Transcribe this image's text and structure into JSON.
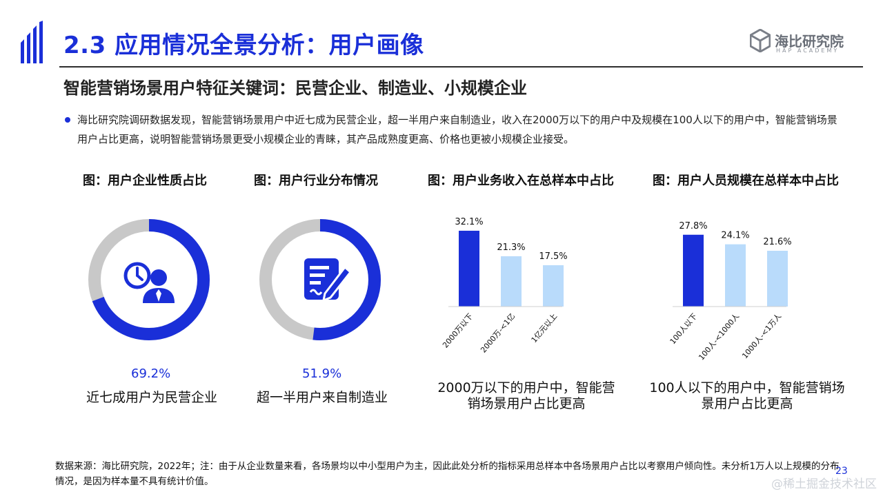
{
  "header": {
    "title": "2.3 应用情况全景分析：用户画像",
    "logo_text": "海比研究院",
    "logo_sub": "HAP ACADEMY"
  },
  "subtitle": "智能营销场景用户特征关键词：民营企业、制造业、小规模企业",
  "bullet": "海比研究院调研数据发现，智能营销场景用户中近七成为民营企业，超一半用户来自制造业，收入在2000万以下的用户中及规模在100人以下的用户中，智能营销场景用户占比更高，说明智能营销场景更受小规模企业的青睐，其产品成熟度更高、价格也更被小规模企业接受。",
  "colors": {
    "accent": "#1a2fd8",
    "donut_rest": "#c8c8c8",
    "bar_light": "#b9dbfb"
  },
  "chart_data": [
    {
      "type": "pie",
      "title": "图：用户企业性质占比",
      "icon": "clock-person-icon",
      "value_pct": 69.2,
      "value_label": "69.2%",
      "caption": "近七成用户为民营企业"
    },
    {
      "type": "pie",
      "title": "图：用户行业分布情况",
      "icon": "document-pen-icon",
      "value_pct": 51.9,
      "value_label": "51.9%",
      "caption": "超一半用户来自制造业"
    },
    {
      "type": "bar",
      "title": "图：用户业务收入在总样本中占比",
      "categories": [
        "2000万以下",
        "2000万-<1亿",
        "1亿元以上"
      ],
      "values": [
        32.1,
        21.3,
        17.5
      ],
      "value_labels": [
        "32.1%",
        "21.3%",
        "17.5%"
      ],
      "ylim": [
        0,
        35
      ],
      "caption": "2000万以下的用户中，智能营销场景用户占比更高"
    },
    {
      "type": "bar",
      "title": "图：用户人员规模在总样本中占比",
      "categories": [
        "100人以下",
        "100人-<1000人",
        "1000人-<1万人"
      ],
      "values": [
        27.8,
        24.1,
        21.6
      ],
      "value_labels": [
        "27.8%",
        "24.1%",
        "21.6%"
      ],
      "ylim": [
        0,
        32
      ],
      "caption": "100人以下的用户中，智能营销场景用户占比更高"
    }
  ],
  "footer": "数据来源：海比研究院，2022年；注：由于从企业数量来看，各场景均以中小型用户为主，因此此处分析的指标采用总样本中各场景用户占比以考察用户倾向性。未分析1万人以上规模的分布情况，是因为样本量不具有统计价值。",
  "page_number": "23",
  "watermark": "@稀土掘金技术社区"
}
